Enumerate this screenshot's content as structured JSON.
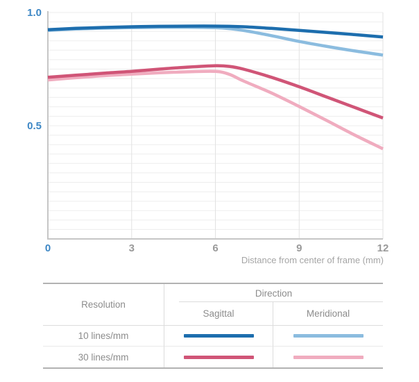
{
  "chart_data": {
    "type": "line",
    "title": "",
    "xlabel": "Distance from center of frame (mm)",
    "ylabel": "",
    "xlim": [
      0,
      12
    ],
    "ylim": [
      0,
      1.0
    ],
    "x_tick_values": [
      0,
      3,
      6,
      9,
      12
    ],
    "x_tick_labels": [
      "0",
      "3",
      "6",
      "9",
      "12"
    ],
    "y_tick_values": [
      1.0,
      0.5
    ],
    "y_tick_labels": [
      "1.0",
      "0.5"
    ],
    "grid": "light horizontal minor gridlines (~every 0.04), vertical gridlines at x ticks, legend shown as table below chart",
    "series": [
      {
        "name": "10 lines/mm Sagittal",
        "resolution": "10 lines/mm",
        "direction": "Sagittal",
        "color": "#1d6eae",
        "points": [
          [
            0,
            0.924
          ],
          [
            1,
            0.93
          ],
          [
            2,
            0.934
          ],
          [
            3,
            0.937
          ],
          [
            4,
            0.939
          ],
          [
            5,
            0.94
          ],
          [
            6,
            0.94
          ],
          [
            7,
            0.937
          ],
          [
            8,
            0.93
          ],
          [
            9,
            0.921
          ],
          [
            10,
            0.912
          ],
          [
            11,
            0.902
          ],
          [
            12,
            0.892
          ]
        ]
      },
      {
        "name": "10 lines/mm Meridional",
        "resolution": "10 lines/mm",
        "direction": "Meridional",
        "color": "#8bbcdf",
        "points": [
          [
            0,
            0.921
          ],
          [
            1,
            0.927
          ],
          [
            2,
            0.931
          ],
          [
            3,
            0.933
          ],
          [
            4,
            0.935
          ],
          [
            5,
            0.935
          ],
          [
            6,
            0.933
          ],
          [
            6.5,
            0.929
          ],
          [
            7,
            0.921
          ],
          [
            8,
            0.898
          ],
          [
            9,
            0.872
          ],
          [
            10,
            0.85
          ],
          [
            11,
            0.83
          ],
          [
            12,
            0.812
          ]
        ]
      },
      {
        "name": "30 lines/mm Sagittal",
        "resolution": "30 lines/mm",
        "direction": "Sagittal",
        "color": "#d05577",
        "points": [
          [
            0,
            0.714
          ],
          [
            1,
            0.723
          ],
          [
            2,
            0.732
          ],
          [
            3,
            0.74
          ],
          [
            4,
            0.75
          ],
          [
            5,
            0.759
          ],
          [
            6,
            0.765
          ],
          [
            6.5,
            0.762
          ],
          [
            7,
            0.75
          ],
          [
            8,
            0.714
          ],
          [
            9,
            0.672
          ],
          [
            10,
            0.626
          ],
          [
            11,
            0.58
          ],
          [
            12,
            0.534
          ]
        ]
      },
      {
        "name": "30 lines/mm Meridional",
        "resolution": "30 lines/mm",
        "direction": "Meridional",
        "color": "#f0acbf",
        "points": [
          [
            0,
            0.702
          ],
          [
            1,
            0.712
          ],
          [
            2,
            0.721
          ],
          [
            3,
            0.728
          ],
          [
            4,
            0.734
          ],
          [
            5,
            0.738
          ],
          [
            6,
            0.74
          ],
          [
            6.5,
            0.727
          ],
          [
            7,
            0.698
          ],
          [
            8,
            0.645
          ],
          [
            9,
            0.585
          ],
          [
            10,
            0.522
          ],
          [
            11,
            0.458
          ],
          [
            12,
            0.398
          ]
        ]
      }
    ]
  },
  "colors": {
    "tick_label_blue": "#3d87c5",
    "tick_label_gray": "#9a9a9a",
    "axis_caption_gray": "#a5a5a5",
    "axis_line": "#c6c6c6",
    "h_gridline": "#ededed",
    "v_gridline": "#e2e2e2",
    "table_border_strong": "#b2b2b2",
    "table_border_light": "#dcdcdc",
    "table_text": "#8c8c8c"
  },
  "legend_table": {
    "resolution_header": "Resolution",
    "direction_header": "Direction",
    "sagittal_header": "Sagittal",
    "meridional_header": "Meridional",
    "rows": [
      {
        "label": "10 lines/mm"
      },
      {
        "label": "30 lines/mm"
      }
    ]
  }
}
